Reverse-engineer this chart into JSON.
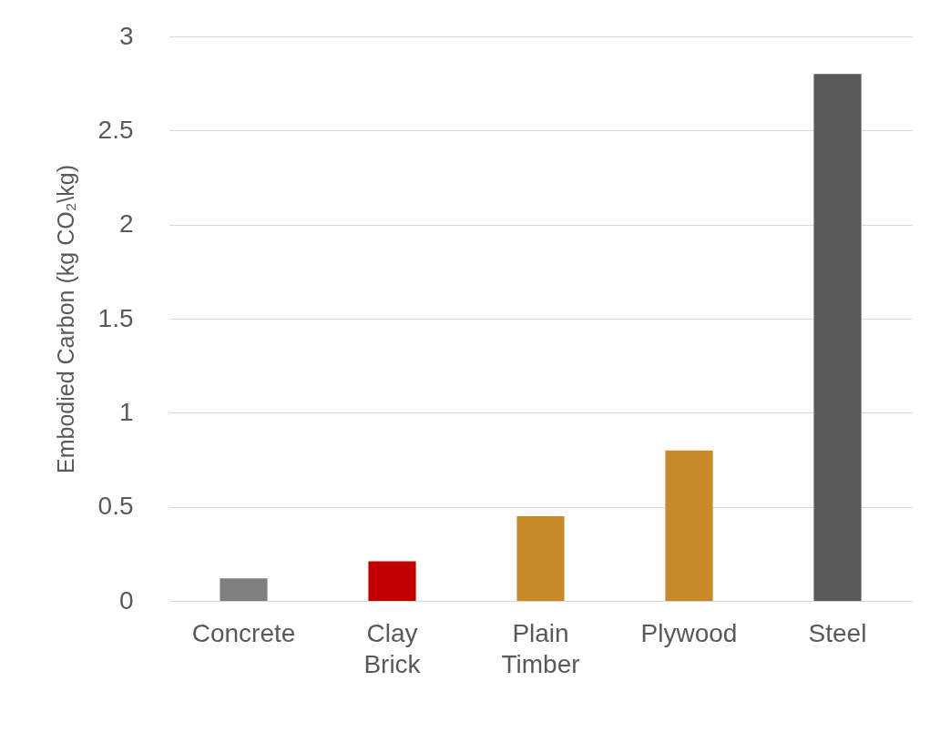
{
  "chart_data": {
    "type": "bar",
    "ylabel": "Embodied Carbon (kg CO₂\\kg)",
    "categories": [
      "Concrete",
      "Clay Brick",
      "Plain Timber",
      "Plywood",
      "Steel"
    ],
    "values": [
      0.12,
      0.21,
      0.45,
      0.8,
      2.8
    ],
    "colors": [
      "#7f7f7f",
      "#c00000",
      "#c8892a",
      "#c8892a",
      "#595959"
    ],
    "ylim": [
      0,
      3
    ],
    "yticks": [
      0,
      0.5,
      1,
      1.5,
      2,
      2.5,
      3
    ],
    "grid": "y"
  }
}
